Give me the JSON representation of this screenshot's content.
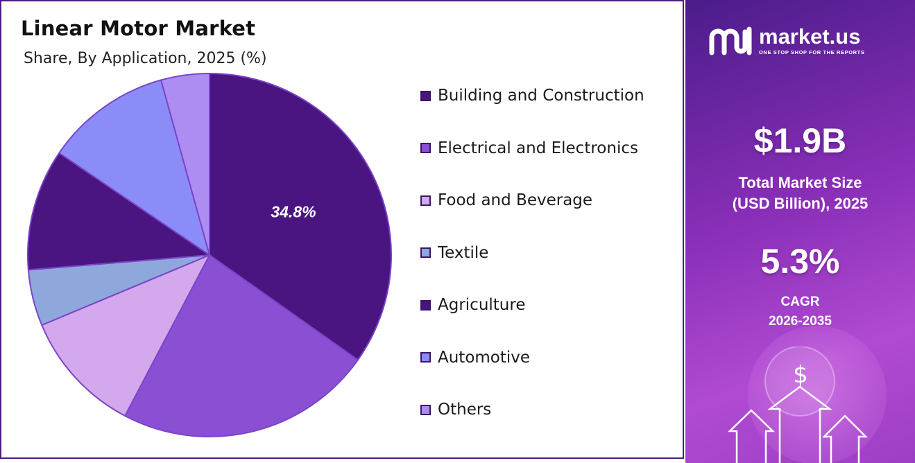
{
  "header": {
    "title": "Linear Motor Market",
    "subtitle": "Share, By Application, 2025 (%)"
  },
  "chart_data": {
    "type": "pie",
    "title": "Linear Motor Market",
    "subtitle": "Share, By Application, 2025 (%)",
    "legend_position": "right",
    "slices": [
      {
        "label": "Building and Construction",
        "value": 34.8,
        "color": "#4a1580",
        "data_label": "34.8%"
      },
      {
        "label": "Electrical and Electronics",
        "value": 22.9,
        "color": "#8b4fd3",
        "data_label": ""
      },
      {
        "label": "Food and Beverage",
        "value": 11.0,
        "color": "#d4a8ec",
        "data_label": ""
      },
      {
        "label": "Textile",
        "value": 5.0,
        "color": "#8fa8dc",
        "data_label": ""
      },
      {
        "label": "Agriculture",
        "value": 10.8,
        "color": "#4a1580",
        "data_label": ""
      },
      {
        "label": "Automotive",
        "value": 11.2,
        "color": "#8c8cf9",
        "data_label": ""
      },
      {
        "label": "Others",
        "value": 4.3,
        "color": "#ad8df2",
        "data_label": ""
      }
    ]
  },
  "panel": {
    "brand_name": "market.us",
    "brand_tagline": "ONE STOP SHOP FOR THE REPORTS",
    "market_size_value": "$1.9B",
    "market_size_label_1": "Total Market Size",
    "market_size_label_2": "(USD Billion), 2025",
    "cagr_value": "5.3%",
    "cagr_label": "CAGR",
    "cagr_period": "2026-2035",
    "dollar_glyph": "$",
    "colors": {
      "panel_start": "#4b1c8a",
      "panel_end": "#b04ad2"
    }
  }
}
